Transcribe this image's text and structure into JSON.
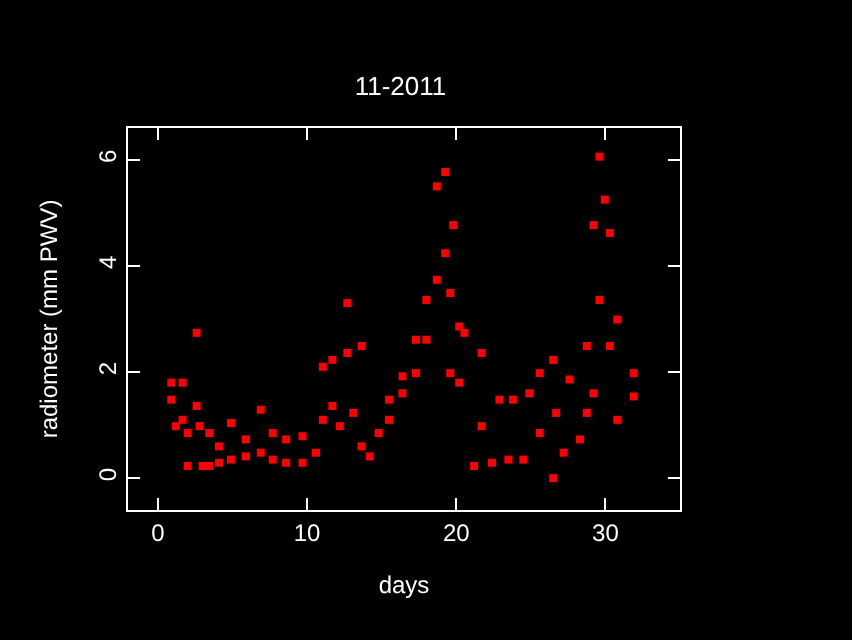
{
  "chart_data": {
    "type": "scatter",
    "title": "11-2011",
    "xlabel": "days",
    "ylabel": "radiometer (mm PWV)",
    "x": [
      0.9,
      0.9,
      1.2,
      1.66,
      1.66,
      2.0,
      2.0,
      2.6,
      2.6,
      2.8,
      3.0,
      3.45,
      3.45,
      4.1,
      4.1,
      4.9,
      4.9,
      5.9,
      5.9,
      6.9,
      6.9,
      7.7,
      7.7,
      8.6,
      8.6,
      9.7,
      9.7,
      10.6,
      11.06,
      11.06,
      11.7,
      11.7,
      12.2,
      12.7,
      12.7,
      13.1,
      13.66,
      13.66,
      14.2,
      14.8,
      15.5,
      15.5,
      16.4,
      16.4,
      17.3,
      17.3,
      18.0,
      18.0,
      18.7,
      18.7,
      19.26,
      19.26,
      19.6,
      19.6,
      19.8,
      20.2,
      20.2,
      20.55,
      21.2,
      21.7,
      21.7,
      22.4,
      22.9,
      23.5,
      23.8,
      24.5,
      24.9,
      25.6,
      25.6,
      26.5,
      26.5,
      26.7,
      27.2,
      27.6,
      28.3,
      28.75,
      28.75,
      29.2,
      29.2,
      29.6,
      29.6,
      29.96,
      30.3,
      30.3,
      30.8,
      30.8,
      31.9,
      31.9
    ],
    "series": [
      {
        "color": "#ff0000",
        "values": [
          1.8,
          1.48,
          0.98,
          1.8,
          1.1,
          0.23,
          0.85,
          2.74,
          1.36,
          0.98,
          0.23,
          0.85,
          0.23,
          0.29,
          0.6,
          1.04,
          0.35,
          0.73,
          0.41,
          1.29,
          0.48,
          0.85,
          0.35,
          0.73,
          0.29,
          0.79,
          0.29,
          0.48,
          2.1,
          1.1,
          2.23,
          1.36,
          0.98,
          3.3,
          2.36,
          1.23,
          2.49,
          0.6,
          0.41,
          0.85,
          1.48,
          1.1,
          1.92,
          1.6,
          2.61,
          1.98,
          3.36,
          2.61,
          5.5,
          3.74,
          5.77,
          4.24,
          3.49,
          1.98,
          4.77,
          2.86,
          1.8,
          2.74,
          0.23,
          2.36,
          0.98,
          0.29,
          1.48,
          0.35,
          1.48,
          0.35,
          1.6,
          1.98,
          0.85,
          0.0,
          2.23,
          1.23,
          0.48,
          1.86,
          0.73,
          2.49,
          1.23,
          4.77,
          1.6,
          6.06,
          3.36,
          5.25,
          4.62,
          2.49,
          1.1,
          2.99,
          1.98,
          1.54
        ]
      }
    ],
    "xlim": [
      -2,
      35
    ],
    "xticks": [
      0,
      10,
      20,
      30
    ],
    "ylim": [
      -0.6,
      6.6
    ],
    "yticks": [
      0,
      2,
      4,
      6
    ],
    "grid": false,
    "marker": "square"
  }
}
